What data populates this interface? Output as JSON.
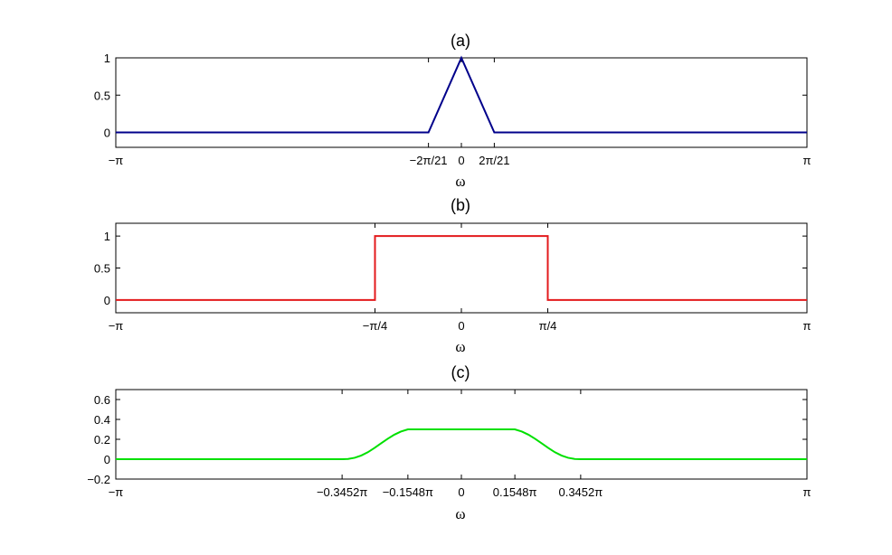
{
  "chart_data": [
    {
      "type": "line",
      "title": "(a)",
      "xlabel": "ω",
      "xlim": [
        -3.14159,
        3.14159
      ],
      "ylim": [
        -0.2,
        1.0
      ],
      "grid": false,
      "xticks": [
        {
          "value": -3.14159,
          "label": "−π"
        },
        {
          "value": -0.2992,
          "label": "−2π/21"
        },
        {
          "value": 0,
          "label": "0"
        },
        {
          "value": 0.2992,
          "label": "2π/21"
        },
        {
          "value": 3.14159,
          "label": "π"
        }
      ],
      "yticks": [
        {
          "value": 0,
          "label": "0"
        },
        {
          "value": 0.5,
          "label": "0.5"
        },
        {
          "value": 1,
          "label": "1"
        }
      ],
      "series": [
        {
          "color": "#00008b",
          "x": [
            -3.14159,
            -0.2992,
            0,
            0.2992,
            3.14159
          ],
          "y": [
            0,
            0,
            1,
            0,
            0
          ]
        }
      ]
    },
    {
      "type": "line",
      "title": "(b)",
      "xlabel": "ω",
      "xlim": [
        -3.14159,
        3.14159
      ],
      "ylim": [
        -0.2,
        1.2
      ],
      "grid": false,
      "xticks": [
        {
          "value": -3.14159,
          "label": "−π"
        },
        {
          "value": -0.7854,
          "label": "−π/4"
        },
        {
          "value": 0,
          "label": "0"
        },
        {
          "value": 0.7854,
          "label": "π/4"
        },
        {
          "value": 3.14159,
          "label": "π"
        }
      ],
      "yticks": [
        {
          "value": 0,
          "label": "0"
        },
        {
          "value": 0.5,
          "label": "0.5"
        },
        {
          "value": 1,
          "label": "1"
        }
      ],
      "series": [
        {
          "color": "#e31a1c",
          "x": [
            -3.14159,
            -0.7854,
            -0.7854,
            0.7854,
            0.7854,
            3.14159
          ],
          "y": [
            0,
            0,
            1,
            1,
            0,
            0
          ]
        }
      ]
    },
    {
      "type": "line",
      "title": "(c)",
      "xlabel": "ω",
      "xlim": [
        -3.14159,
        3.14159
      ],
      "ylim": [
        -0.2,
        0.7
      ],
      "grid": false,
      "xticks": [
        {
          "value": -3.14159,
          "label": "−π"
        },
        {
          "value": -1.08447,
          "label": "−0.3452π"
        },
        {
          "value": -0.48632,
          "label": "−0.1548π"
        },
        {
          "value": 0,
          "label": "0"
        },
        {
          "value": 0.48632,
          "label": "0.1548π"
        },
        {
          "value": 1.08447,
          "label": "0.3452π"
        },
        {
          "value": 3.14159,
          "label": "π"
        }
      ],
      "yticks": [
        {
          "value": -0.2,
          "label": "−0.2"
        },
        {
          "value": 0,
          "label": "0"
        },
        {
          "value": 0.2,
          "label": "0.2"
        },
        {
          "value": 0.4,
          "label": "0.4"
        },
        {
          "value": 0.6,
          "label": "0.6"
        }
      ],
      "series": [
        {
          "color": "#00e000",
          "x": [
            -3.14159,
            -1.08447,
            -1.03,
            -0.97,
            -0.91,
            -0.85,
            -0.79,
            -0.73,
            -0.67,
            -0.61,
            -0.55,
            -0.48632,
            0.48632,
            0.55,
            0.61,
            0.67,
            0.73,
            0.79,
            0.85,
            0.91,
            0.97,
            1.03,
            1.08447,
            3.14159
          ],
          "y": [
            0,
            0,
            0.002,
            0.014,
            0.037,
            0.07,
            0.113,
            0.16,
            0.205,
            0.246,
            0.278,
            0.3,
            0.3,
            0.278,
            0.246,
            0.205,
            0.16,
            0.113,
            0.07,
            0.037,
            0.014,
            0.002,
            0,
            0
          ]
        }
      ]
    }
  ]
}
